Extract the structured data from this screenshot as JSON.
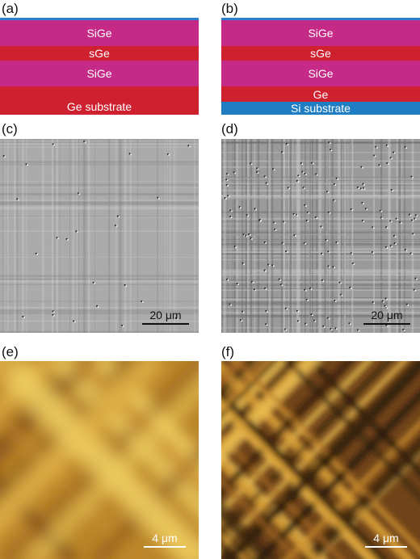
{
  "panels": {
    "a": {
      "label": "(a)",
      "layers": [
        {
          "name": "SiGe",
          "color": "#c42a86"
        },
        {
          "name": "sGe",
          "color": "#cf2030"
        },
        {
          "name": "SiGe",
          "color": "#c42a86"
        },
        {
          "name": "Ge substrate",
          "color": "#cf2030"
        }
      ]
    },
    "b": {
      "label": "(b)",
      "layers": [
        {
          "name": "SiGe",
          "color": "#c42a86"
        },
        {
          "name": "sGe",
          "color": "#cf2030"
        },
        {
          "name": "SiGe",
          "color": "#c42a86"
        },
        {
          "name": "Ge",
          "color": "#cf2030"
        },
        {
          "name": "Si substrate",
          "color": "#1f7dc4"
        }
      ]
    },
    "c": {
      "label": "(c)",
      "scale_bar": "20 μm"
    },
    "d": {
      "label": "(d)",
      "scale_bar": "20 μm"
    },
    "e": {
      "label": "(e)",
      "scale_bar": "4 μm"
    },
    "f": {
      "label": "(f)",
      "scale_bar": "4 μm"
    }
  },
  "colors": {
    "top_cap": "#2a7fd0",
    "sige": "#c42a86",
    "ge": "#cf2030",
    "si": "#1f7dc4"
  }
}
